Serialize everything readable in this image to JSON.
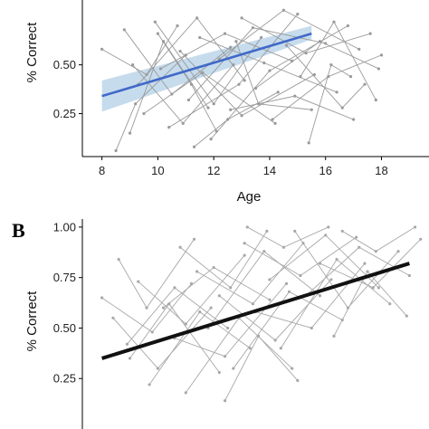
{
  "chart_data": [
    {
      "type": "line",
      "panel_label": "",
      "xlabel": "Age",
      "ylabel": "% Correct",
      "xlim": [
        7.3,
        19.7
      ],
      "ylim": [
        0.03,
        0.86
      ],
      "xticks": [
        {
          "value": 8,
          "label": "8"
        },
        {
          "value": 10,
          "label": "10"
        },
        {
          "value": 12,
          "label": "12"
        },
        {
          "value": 14,
          "label": "14"
        },
        {
          "value": 16,
          "label": "16"
        },
        {
          "value": 18,
          "label": "18"
        }
      ],
      "yticks": [
        {
          "value": 0.25,
          "label": "0.25"
        },
        {
          "value": 0.5,
          "label": "0.50"
        }
      ],
      "grid": false,
      "series": [
        {
          "kind": "regression",
          "color": "#4169c8",
          "band_color": "#bcd6ea",
          "x": [
            8.0,
            15.5
          ],
          "y": [
            0.34,
            0.66
          ],
          "ci_lower": [
            0.26,
            0.63
          ],
          "ci_upper": [
            0.42,
            0.7
          ]
        }
      ],
      "subject_trajectories_color": "#9a9a9a",
      "subject_trajectories": [
        [
          [
            8.0,
            0.58
          ],
          [
            9.6,
            0.45
          ],
          [
            10.7,
            0.7
          ]
        ],
        [
          [
            8.5,
            0.06
          ],
          [
            9.2,
            0.3
          ],
          [
            11.0,
            0.55
          ]
        ],
        [
          [
            8.8,
            0.68
          ],
          [
            10.5,
            0.35
          ],
          [
            12.6,
            0.59
          ]
        ],
        [
          [
            9.0,
            0.15
          ],
          [
            10.2,
            0.62
          ],
          [
            11.8,
            0.28
          ]
        ],
        [
          [
            9.3,
            0.4
          ],
          [
            11.4,
            0.74
          ],
          [
            13.1,
            0.42
          ]
        ],
        [
          [
            9.5,
            0.25
          ],
          [
            11.6,
            0.46
          ],
          [
            14.2,
            0.2
          ]
        ],
        [
          [
            9.9,
            0.72
          ],
          [
            12.0,
            0.3
          ],
          [
            13.7,
            0.64
          ]
        ],
        [
          [
            10.1,
            0.48
          ],
          [
            12.4,
            0.66
          ],
          [
            14.8,
            0.52
          ]
        ],
        [
          [
            10.4,
            0.18
          ],
          [
            12.9,
            0.4
          ],
          [
            15.0,
            0.76
          ]
        ],
        [
          [
            10.8,
            0.57
          ],
          [
            13.0,
            0.24
          ],
          [
            15.6,
            0.45
          ]
        ],
        [
          [
            11.1,
            0.32
          ],
          [
            13.4,
            0.69
          ],
          [
            16.0,
            0.61
          ]
        ],
        [
          [
            11.5,
            0.64
          ],
          [
            13.8,
            0.51
          ],
          [
            16.4,
            0.36
          ]
        ],
        [
          [
            11.9,
            0.12
          ],
          [
            14.0,
            0.47
          ],
          [
            16.8,
            0.7
          ]
        ],
        [
          [
            12.2,
            0.53
          ],
          [
            14.5,
            0.78
          ],
          [
            17.2,
            0.58
          ]
        ],
        [
          [
            12.6,
            0.27
          ],
          [
            14.9,
            0.34
          ],
          [
            17.0,
            0.22
          ]
        ],
        [
          [
            13.0,
            0.74
          ],
          [
            15.3,
            0.56
          ],
          [
            17.6,
            0.66
          ]
        ],
        [
          [
            13.5,
            0.38
          ],
          [
            15.8,
            0.62
          ],
          [
            17.9,
            0.48
          ]
        ],
        [
          [
            14.1,
            0.22
          ],
          [
            16.1,
            0.44
          ],
          [
            18.0,
            0.55
          ]
        ],
        [
          [
            14.6,
            0.6
          ],
          [
            16.6,
            0.28
          ],
          [
            17.4,
            0.4
          ]
        ],
        [
          [
            15.1,
            0.44
          ],
          [
            16.3,
            0.72
          ],
          [
            17.8,
            0.32
          ]
        ],
        [
          [
            9.1,
            0.5
          ],
          [
            10.9,
            0.2
          ],
          [
            12.7,
            0.5
          ]
        ],
        [
          [
            10.0,
            0.66
          ],
          [
            11.2,
            0.4
          ],
          [
            12.1,
            0.16
          ]
        ],
        [
          [
            12.8,
            0.62
          ],
          [
            13.6,
            0.3
          ],
          [
            15.5,
            0.27
          ]
        ],
        [
          [
            11.3,
            0.08
          ],
          [
            12.5,
            0.22
          ],
          [
            14.3,
            0.36
          ]
        ],
        [
          [
            15.4,
            0.1
          ],
          [
            16.2,
            0.5
          ],
          [
            16.9,
            0.44
          ]
        ]
      ]
    },
    {
      "type": "line",
      "panel_label": "B",
      "xlabel": "",
      "ylabel": "% Correct",
      "xlim": [
        7.3,
        19.7
      ],
      "ylim": [
        0.0,
        1.04
      ],
      "xticks": [],
      "yticks": [
        {
          "value": 0.25,
          "label": "0.25"
        },
        {
          "value": 0.5,
          "label": "0.50"
        },
        {
          "value": 0.75,
          "label": "0.75"
        },
        {
          "value": 1.0,
          "label": "1.00"
        }
      ],
      "grid": false,
      "series": [
        {
          "kind": "regression",
          "color": "#111111",
          "x": [
            8.0,
            19.0
          ],
          "y": [
            0.35,
            0.82
          ]
        }
      ],
      "subject_trajectories_color": "#a8a8a8",
      "subject_trajectories": [
        [
          [
            8.0,
            0.65
          ],
          [
            9.8,
            0.48
          ],
          [
            11.2,
            0.72
          ]
        ],
        [
          [
            8.4,
            0.55
          ],
          [
            10.0,
            0.3
          ],
          [
            11.9,
            0.6
          ]
        ],
        [
          [
            8.9,
            0.42
          ],
          [
            10.6,
            0.7
          ],
          [
            12.5,
            0.5
          ]
        ],
        [
          [
            9.3,
            0.73
          ],
          [
            11.0,
            0.52
          ],
          [
            13.1,
            0.86
          ]
        ],
        [
          [
            9.7,
            0.22
          ],
          [
            11.5,
            0.58
          ],
          [
            13.3,
            0.4
          ]
        ],
        [
          [
            10.2,
            0.6
          ],
          [
            12.0,
            0.8
          ],
          [
            14.0,
            0.64
          ]
        ],
        [
          [
            10.6,
            0.45
          ],
          [
            12.4,
            0.36
          ],
          [
            14.6,
            0.72
          ]
        ],
        [
          [
            11.0,
            0.18
          ],
          [
            12.9,
            0.55
          ],
          [
            14.8,
            0.3
          ]
        ],
        [
          [
            11.4,
            0.78
          ],
          [
            13.4,
            0.62
          ],
          [
            15.2,
            0.92
          ]
        ],
        [
          [
            11.8,
            0.5
          ],
          [
            13.8,
            0.88
          ],
          [
            15.8,
            0.66
          ]
        ],
        [
          [
            12.2,
            0.66
          ],
          [
            14.2,
            0.44
          ],
          [
            16.2,
            0.74
          ]
        ],
        [
          [
            12.7,
            0.3
          ],
          [
            14.7,
            0.68
          ],
          [
            16.6,
            0.54
          ]
        ],
        [
          [
            13.1,
            0.92
          ],
          [
            15.1,
            0.76
          ],
          [
            17.1,
            0.95
          ]
        ],
        [
          [
            13.5,
            0.58
          ],
          [
            15.5,
            0.5
          ],
          [
            17.4,
            0.82
          ]
        ],
        [
          [
            14.0,
            0.74
          ],
          [
            16.0,
            0.96
          ],
          [
            17.9,
            0.7
          ]
        ],
        [
          [
            14.4,
            0.4
          ],
          [
            16.4,
            0.84
          ],
          [
            18.3,
            0.62
          ]
        ],
        [
          [
            14.9,
            0.98
          ],
          [
            16.8,
            0.6
          ],
          [
            18.6,
            0.88
          ]
        ],
        [
          [
            15.3,
            0.66
          ],
          [
            17.2,
            0.9
          ],
          [
            19.0,
            0.76
          ]
        ],
        [
          [
            15.8,
            0.82
          ],
          [
            17.7,
            0.7
          ],
          [
            19.4,
            0.94
          ]
        ],
        [
          [
            16.3,
            0.46
          ],
          [
            17.5,
            0.78
          ],
          [
            18.9,
            0.56
          ]
        ],
        [
          [
            9.0,
            0.35
          ],
          [
            10.4,
            0.62
          ],
          [
            12.2,
            0.28
          ]
        ],
        [
          [
            10.8,
            0.9
          ],
          [
            12.6,
            0.7
          ],
          [
            13.9,
            0.98
          ]
        ],
        [
          [
            12.4,
            0.14
          ],
          [
            13.6,
            0.46
          ],
          [
            15.0,
            0.24
          ]
        ],
        [
          [
            16.6,
            0.98
          ],
          [
            17.8,
            0.88
          ],
          [
            19.2,
            1.0
          ]
        ],
        [
          [
            13.2,
            1.0
          ],
          [
            14.5,
            0.9
          ],
          [
            16.1,
            1.0
          ]
        ],
        [
          [
            8.6,
            0.84
          ],
          [
            9.6,
            0.6
          ],
          [
            11.3,
            0.94
          ]
        ]
      ]
    }
  ]
}
